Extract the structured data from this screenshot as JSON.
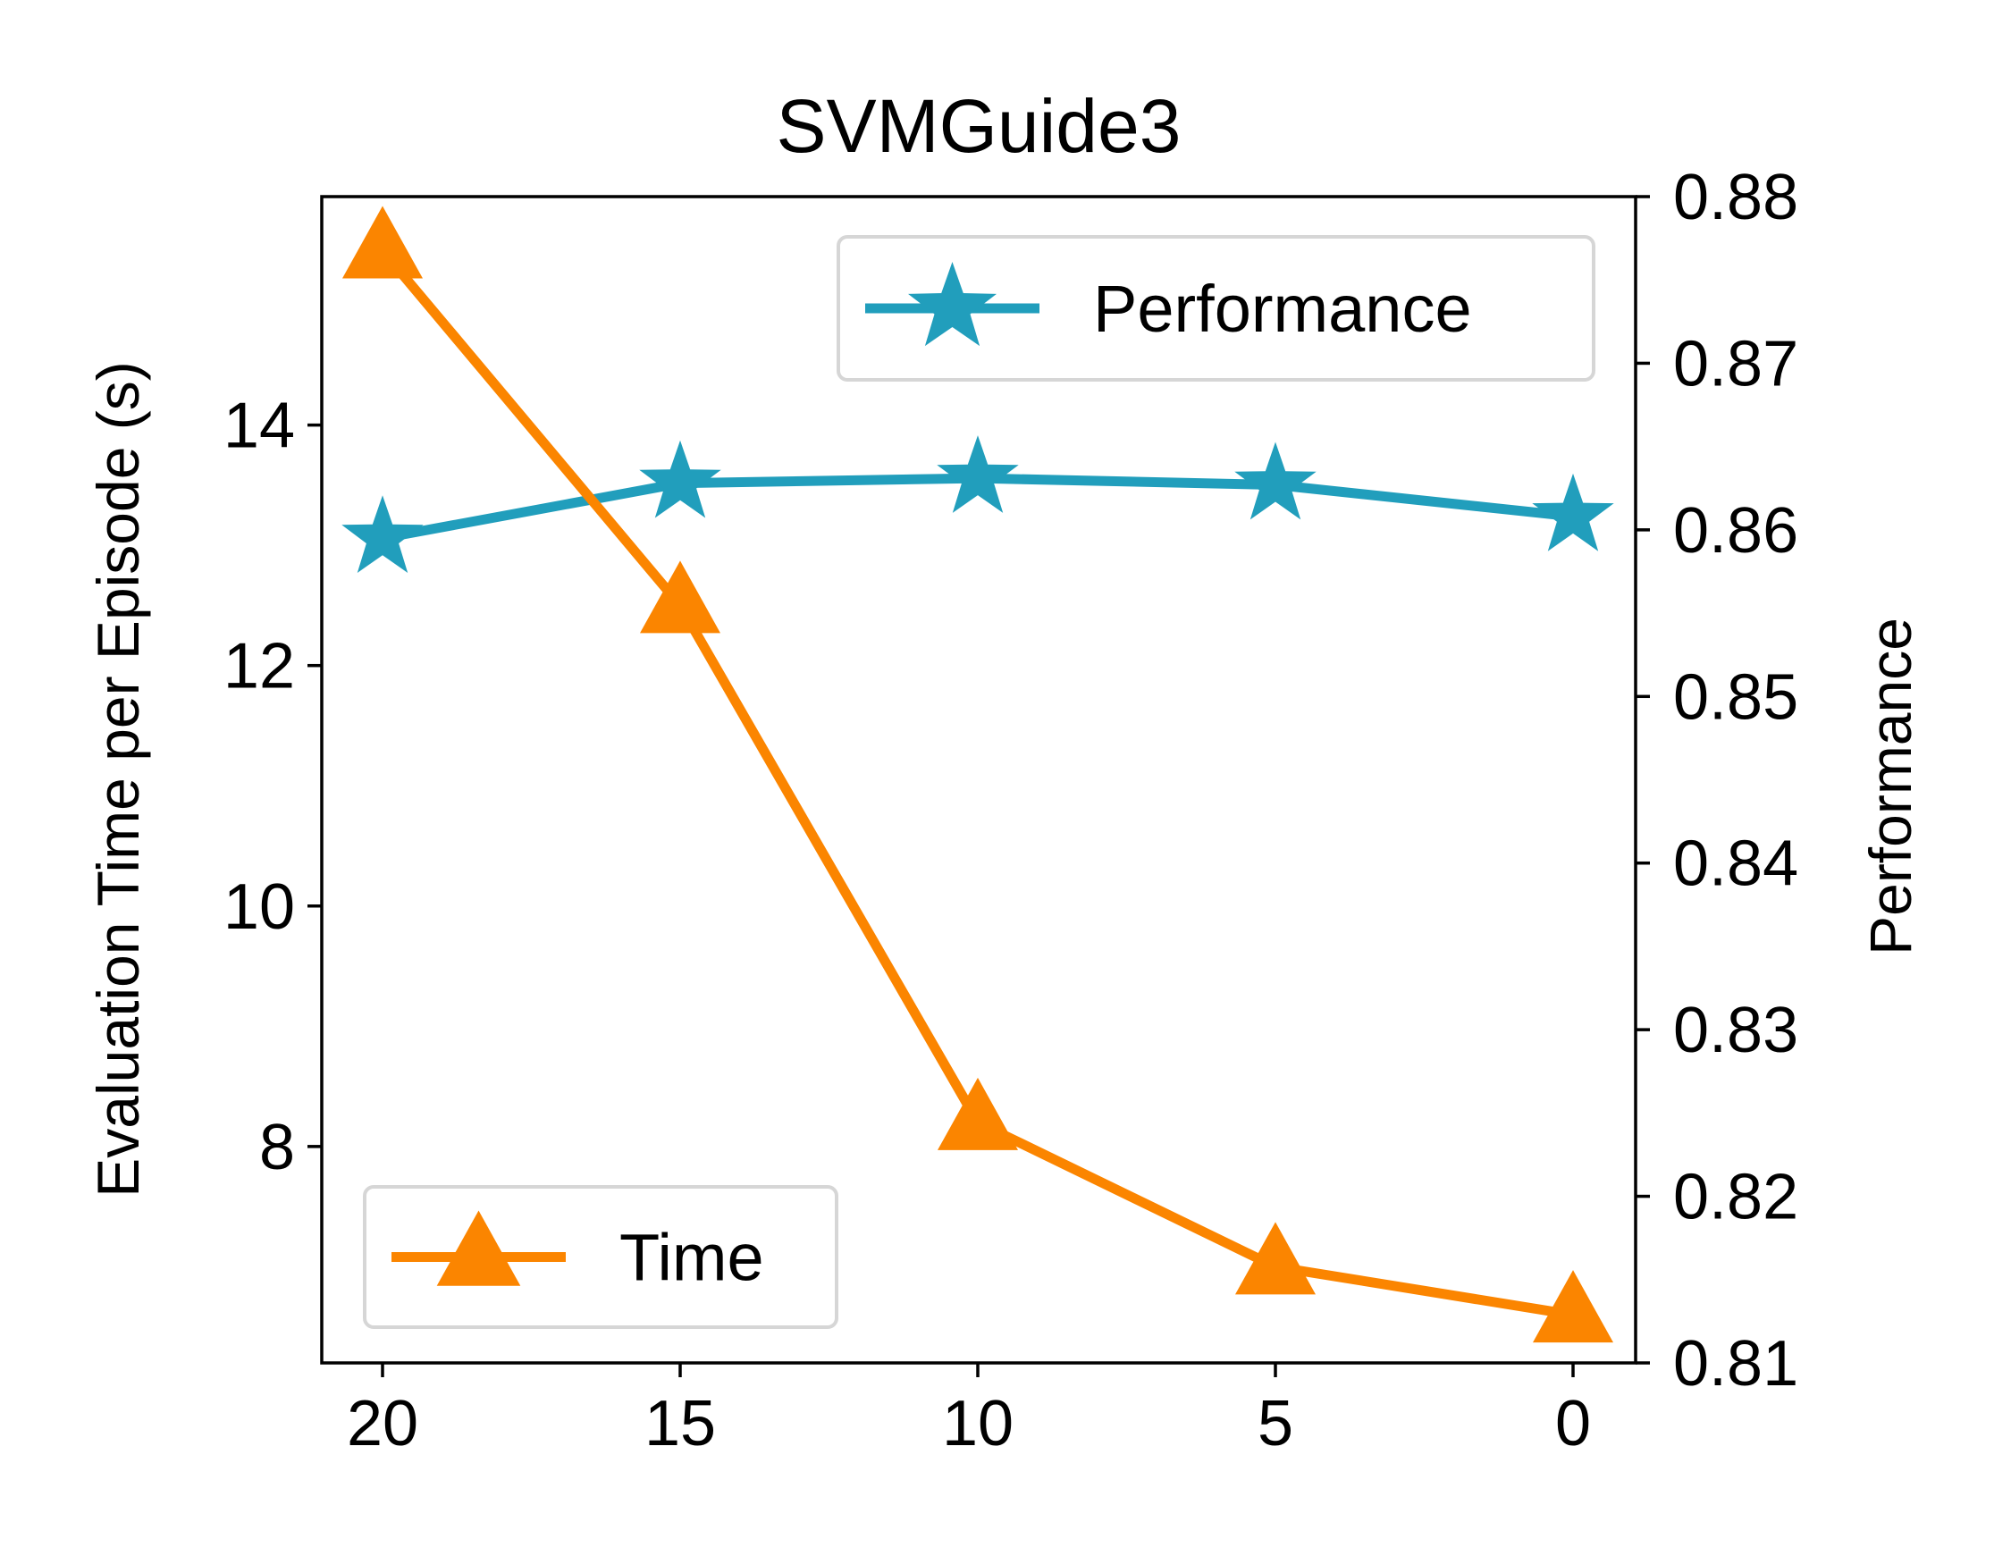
{
  "chart_data": {
    "type": "line",
    "title": "SVMGuide3",
    "xlabel": "",
    "ylabel": "Evaluation Time per Episode (s)",
    "y2label": "Performance",
    "x": [
      20,
      15,
      10,
      5,
      0
    ],
    "x_ticks": [
      "20",
      "15",
      "10",
      "5",
      "0"
    ],
    "x_inverted": true,
    "ylim": [
      6.2,
      15.9
    ],
    "y_ticks": [
      8,
      10,
      12,
      14
    ],
    "y_tick_labels": [
      "8",
      "10",
      "12",
      "14"
    ],
    "y2lim": [
      0.81,
      0.88
    ],
    "y2_ticks": [
      0.81,
      0.82,
      0.83,
      0.84,
      0.85,
      0.86,
      0.87,
      0.88
    ],
    "y2_tick_labels": [
      "0.81",
      "0.82",
      "0.83",
      "0.84",
      "0.85",
      "0.86",
      "0.87",
      "0.88"
    ],
    "series": [
      {
        "name": "Performance",
        "axis": "right",
        "marker": "star",
        "color": "#219ebc",
        "values": [
          0.8595,
          0.8628,
          0.8631,
          0.8627,
          0.8608
        ],
        "legend_position": "top-right"
      },
      {
        "name": "Time",
        "axis": "left",
        "marker": "triangle",
        "color": "#fb8500",
        "values": [
          15.45,
          12.5,
          8.2,
          7.0,
          6.6
        ],
        "legend_position": "bottom-left"
      }
    ],
    "grid": false
  }
}
